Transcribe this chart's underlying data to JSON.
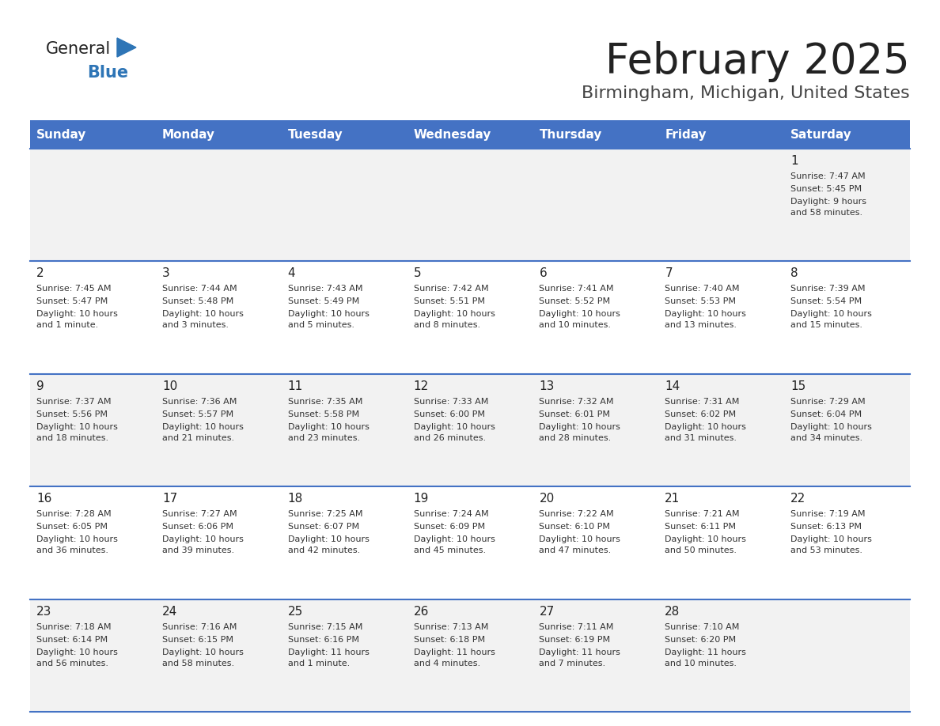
{
  "title": "February 2025",
  "subtitle": "Birmingham, Michigan, United States",
  "header_color": "#4472C4",
  "header_text_color": "#FFFFFF",
  "days_of_week": [
    "Sunday",
    "Monday",
    "Tuesday",
    "Wednesday",
    "Thursday",
    "Friday",
    "Saturday"
  ],
  "bg_color": "#FFFFFF",
  "cell_bg_even": "#F2F2F2",
  "cell_bg_odd": "#FFFFFF",
  "cell_text_color": "#333333",
  "day_num_color": "#222222",
  "border_color": "#4472C4",
  "logo_general_color": "#222222",
  "logo_blue_color": "#2E75B6",
  "title_color": "#222222",
  "subtitle_color": "#444444",
  "calendar": [
    [
      {
        "day": null,
        "sunrise": null,
        "sunset": null,
        "daylight": null
      },
      {
        "day": null,
        "sunrise": null,
        "sunset": null,
        "daylight": null
      },
      {
        "day": null,
        "sunrise": null,
        "sunset": null,
        "daylight": null
      },
      {
        "day": null,
        "sunrise": null,
        "sunset": null,
        "daylight": null
      },
      {
        "day": null,
        "sunrise": null,
        "sunset": null,
        "daylight": null
      },
      {
        "day": null,
        "sunrise": null,
        "sunset": null,
        "daylight": null
      },
      {
        "day": 1,
        "sunrise": "7:47 AM",
        "sunset": "5:45 PM",
        "daylight": "9 hours\nand 58 minutes."
      }
    ],
    [
      {
        "day": 2,
        "sunrise": "7:45 AM",
        "sunset": "5:47 PM",
        "daylight": "10 hours\nand 1 minute."
      },
      {
        "day": 3,
        "sunrise": "7:44 AM",
        "sunset": "5:48 PM",
        "daylight": "10 hours\nand 3 minutes."
      },
      {
        "day": 4,
        "sunrise": "7:43 AM",
        "sunset": "5:49 PM",
        "daylight": "10 hours\nand 5 minutes."
      },
      {
        "day": 5,
        "sunrise": "7:42 AM",
        "sunset": "5:51 PM",
        "daylight": "10 hours\nand 8 minutes."
      },
      {
        "day": 6,
        "sunrise": "7:41 AM",
        "sunset": "5:52 PM",
        "daylight": "10 hours\nand 10 minutes."
      },
      {
        "day": 7,
        "sunrise": "7:40 AM",
        "sunset": "5:53 PM",
        "daylight": "10 hours\nand 13 minutes."
      },
      {
        "day": 8,
        "sunrise": "7:39 AM",
        "sunset": "5:54 PM",
        "daylight": "10 hours\nand 15 minutes."
      }
    ],
    [
      {
        "day": 9,
        "sunrise": "7:37 AM",
        "sunset": "5:56 PM",
        "daylight": "10 hours\nand 18 minutes."
      },
      {
        "day": 10,
        "sunrise": "7:36 AM",
        "sunset": "5:57 PM",
        "daylight": "10 hours\nand 21 minutes."
      },
      {
        "day": 11,
        "sunrise": "7:35 AM",
        "sunset": "5:58 PM",
        "daylight": "10 hours\nand 23 minutes."
      },
      {
        "day": 12,
        "sunrise": "7:33 AM",
        "sunset": "6:00 PM",
        "daylight": "10 hours\nand 26 minutes."
      },
      {
        "day": 13,
        "sunrise": "7:32 AM",
        "sunset": "6:01 PM",
        "daylight": "10 hours\nand 28 minutes."
      },
      {
        "day": 14,
        "sunrise": "7:31 AM",
        "sunset": "6:02 PM",
        "daylight": "10 hours\nand 31 minutes."
      },
      {
        "day": 15,
        "sunrise": "7:29 AM",
        "sunset": "6:04 PM",
        "daylight": "10 hours\nand 34 minutes."
      }
    ],
    [
      {
        "day": 16,
        "sunrise": "7:28 AM",
        "sunset": "6:05 PM",
        "daylight": "10 hours\nand 36 minutes."
      },
      {
        "day": 17,
        "sunrise": "7:27 AM",
        "sunset": "6:06 PM",
        "daylight": "10 hours\nand 39 minutes."
      },
      {
        "day": 18,
        "sunrise": "7:25 AM",
        "sunset": "6:07 PM",
        "daylight": "10 hours\nand 42 minutes."
      },
      {
        "day": 19,
        "sunrise": "7:24 AM",
        "sunset": "6:09 PM",
        "daylight": "10 hours\nand 45 minutes."
      },
      {
        "day": 20,
        "sunrise": "7:22 AM",
        "sunset": "6:10 PM",
        "daylight": "10 hours\nand 47 minutes."
      },
      {
        "day": 21,
        "sunrise": "7:21 AM",
        "sunset": "6:11 PM",
        "daylight": "10 hours\nand 50 minutes."
      },
      {
        "day": 22,
        "sunrise": "7:19 AM",
        "sunset": "6:13 PM",
        "daylight": "10 hours\nand 53 minutes."
      }
    ],
    [
      {
        "day": 23,
        "sunrise": "7:18 AM",
        "sunset": "6:14 PM",
        "daylight": "10 hours\nand 56 minutes."
      },
      {
        "day": 24,
        "sunrise": "7:16 AM",
        "sunset": "6:15 PM",
        "daylight": "10 hours\nand 58 minutes."
      },
      {
        "day": 25,
        "sunrise": "7:15 AM",
        "sunset": "6:16 PM",
        "daylight": "11 hours\nand 1 minute."
      },
      {
        "day": 26,
        "sunrise": "7:13 AM",
        "sunset": "6:18 PM",
        "daylight": "11 hours\nand 4 minutes."
      },
      {
        "day": 27,
        "sunrise": "7:11 AM",
        "sunset": "6:19 PM",
        "daylight": "11 hours\nand 7 minutes."
      },
      {
        "day": 28,
        "sunrise": "7:10 AM",
        "sunset": "6:20 PM",
        "daylight": "11 hours\nand 10 minutes."
      },
      {
        "day": null,
        "sunrise": null,
        "sunset": null,
        "daylight": null
      }
    ]
  ]
}
